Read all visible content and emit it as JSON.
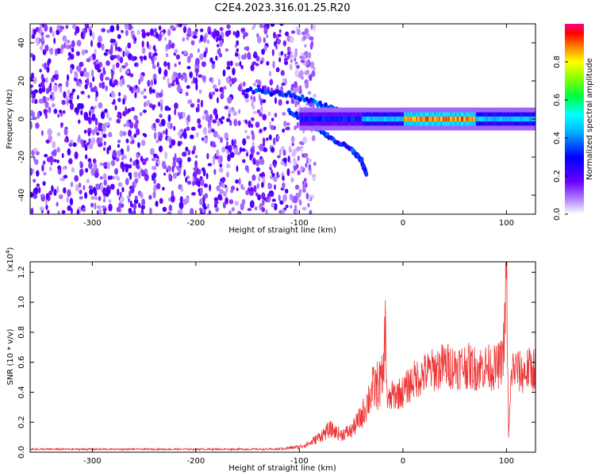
{
  "figure": {
    "title": "C2E4.2023.316.01.25.R20"
  },
  "chart_data": [
    {
      "type": "heatmap",
      "xlabel": "Height of straight line (km)",
      "ylabel": "Frequency (Hz)",
      "xlim": [
        -360,
        128
      ],
      "ylim": [
        -50,
        50
      ],
      "x_ticks": [
        -300,
        -200,
        -100,
        0,
        100
      ],
      "y_ticks": [
        -40,
        -20,
        0,
        20,
        40
      ],
      "colorbar": {
        "label": "Normalized spectral amplitude",
        "range": [
          0.0,
          1.0
        ],
        "ticks": [
          0.0,
          0.2,
          0.4,
          0.6,
          0.8
        ],
        "colormap": [
          "#ffffff",
          "#7f00ff",
          "#0000ff",
          "#00ffff",
          "#00ff00",
          "#ffff00",
          "#ff0000",
          "#ff00aa"
        ]
      },
      "features": {
        "noise_region_x": [
          -360,
          -100
        ],
        "noise_level": 0.15,
        "main_band_x": [
          -100,
          128
        ],
        "main_band_freq": 0,
        "main_band_peak_x": [
          0,
          70
        ],
        "main_band_peak_amplitude": 0.95,
        "branch_upper": {
          "x": [
            -150,
            -110,
            -80,
            -55,
            -30
          ],
          "freq": [
            15,
            13,
            8,
            3,
            1
          ]
        },
        "branch_lower": {
          "x": [
            -110,
            -90,
            -70,
            -50,
            -40,
            -35
          ],
          "freq": [
            4,
            -2,
            -10,
            -16,
            -22,
            -30
          ]
        }
      }
    },
    {
      "type": "line",
      "xlabel": "Height of straight line (km)",
      "ylabel": "SNR (10 * v/v)",
      "y_multiplier": "(x10",
      "y_multiplier_exponent": "4",
      "y_multiplier_close": ")",
      "xlim": [
        -360,
        128
      ],
      "ylim": [
        0,
        1.27
      ],
      "x_ticks": [
        -300,
        -200,
        -100,
        0,
        100
      ],
      "y_ticks": [
        0.0,
        0.2,
        0.4,
        0.6,
        0.8,
        1.0,
        1.2
      ],
      "series": [
        {
          "color": "#ee3333",
          "x": [
            -360,
            -300,
            -200,
            -130,
            -115,
            -100,
            -90,
            -80,
            -70,
            -60,
            -50,
            -40,
            -30,
            -20,
            -17,
            -15,
            -10,
            0,
            10,
            20,
            30,
            40,
            50,
            60,
            70,
            80,
            90,
            95,
            98,
            100,
            102,
            105,
            110,
            115,
            120,
            128
          ],
          "y": [
            0.02,
            0.02,
            0.02,
            0.02,
            0.02,
            0.03,
            0.05,
            0.09,
            0.13,
            0.1,
            0.12,
            0.2,
            0.35,
            0.4,
            0.84,
            0.32,
            0.38,
            0.4,
            0.48,
            0.52,
            0.55,
            0.58,
            0.57,
            0.58,
            0.56,
            0.57,
            0.56,
            0.6,
            0.75,
            1.27,
            0.09,
            0.55,
            0.55,
            0.52,
            0.55,
            0.56
          ]
        }
      ]
    }
  ]
}
